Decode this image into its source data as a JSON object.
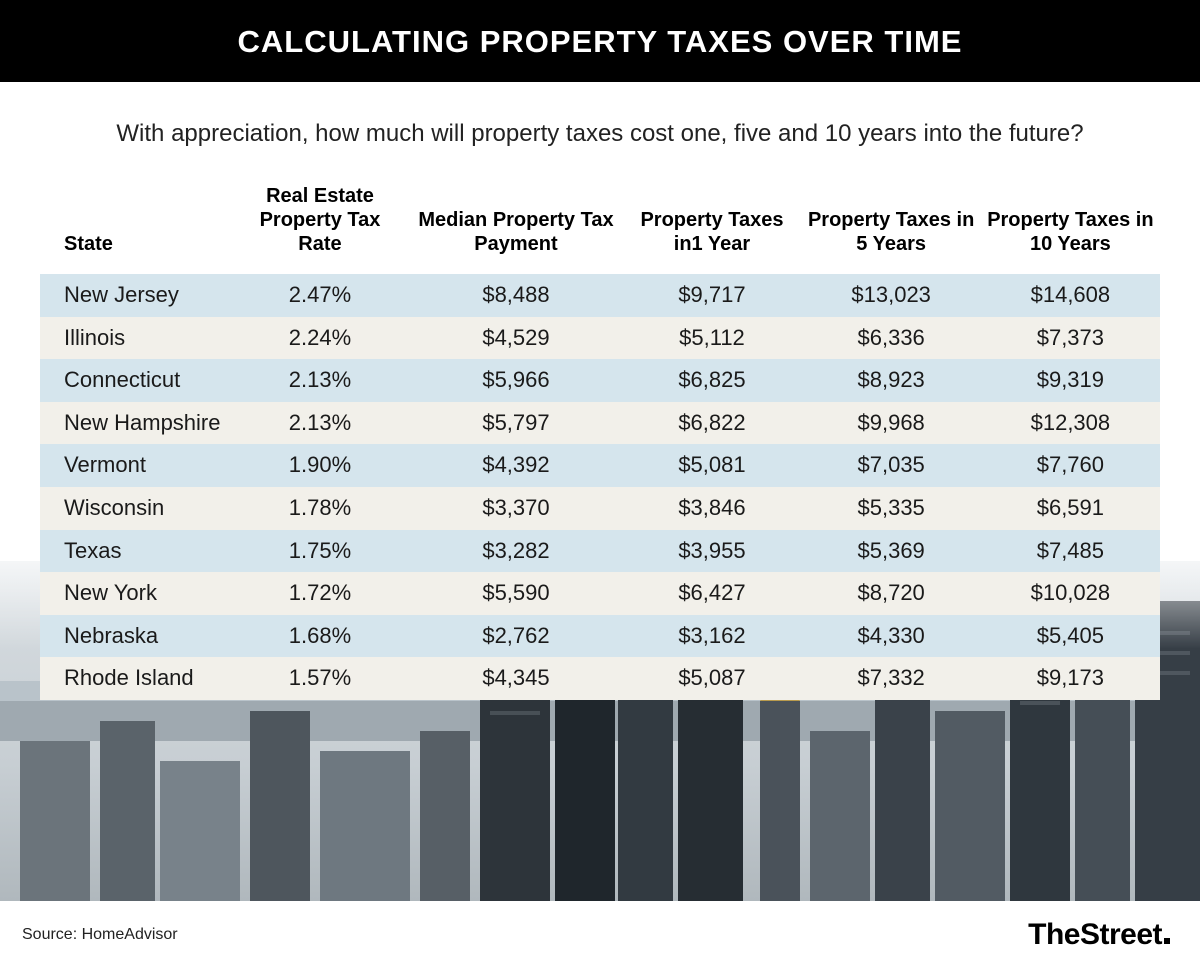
{
  "title": "CALCULATING PROPERTY TAXES OVER TIME",
  "subtitle": "With appreciation, how much will property taxes cost one, five and 10 years into the future?",
  "source_label": "Source: HomeAdvisor",
  "brand": "TheStreet",
  "table": {
    "type": "table",
    "row_colors": {
      "odd": "#d5e5ed",
      "even": "#f2f0ea"
    },
    "header_fontsize": 20,
    "cell_fontsize": 22,
    "text_color": "#1a1a1a",
    "columns": [
      {
        "key": "state",
        "label": "State",
        "align": "left",
        "width_pct": 17
      },
      {
        "key": "rate",
        "label": "Real Estate Property Tax Rate",
        "align": "center",
        "width_pct": 16
      },
      {
        "key": "median",
        "label": "Median Property Tax Payment",
        "align": "center",
        "width_pct": 19
      },
      {
        "key": "y1",
        "label": "Property Taxes in1 Year",
        "align": "center",
        "width_pct": 16
      },
      {
        "key": "y5",
        "label": "Property Taxes in 5 Years",
        "align": "center",
        "width_pct": 16
      },
      {
        "key": "y10",
        "label": "Property Taxes in 10 Years",
        "align": "center",
        "width_pct": 16
      }
    ],
    "rows": [
      {
        "state": "New Jersey",
        "rate": "2.47%",
        "median": "$8,488",
        "y1": "$9,717",
        "y5": "$13,023",
        "y10": "$14,608"
      },
      {
        "state": "Illinois",
        "rate": "2.24%",
        "median": "$4,529",
        "y1": "$5,112",
        "y5": "$6,336",
        "y10": "$7,373"
      },
      {
        "state": "Connecticut",
        "rate": "2.13%",
        "median": "$5,966",
        "y1": "$6,825",
        "y5": "$8,923",
        "y10": "$9,319"
      },
      {
        "state": "New Hampshire",
        "rate": "2.13%",
        "median": "$5,797",
        "y1": "$6,822",
        "y5": "$9,968",
        "y10": "$12,308"
      },
      {
        "state": "Vermont",
        "rate": "1.90%",
        "median": "$4,392",
        "y1": "$5,081",
        "y5": "$7,035",
        "y10": "$7,760"
      },
      {
        "state": "Wisconsin",
        "rate": "1.78%",
        "median": "$3,370",
        "y1": "$3,846",
        "y5": "$5,335",
        "y10": "$6,591"
      },
      {
        "state": "Texas",
        "rate": "1.75%",
        "median": "$3,282",
        "y1": "$3,955",
        "y5": "$5,369",
        "y10": "$7,485"
      },
      {
        "state": "New York",
        "rate": "1.72%",
        "median": "$5,590",
        "y1": "$6,427",
        "y5": "$8,720",
        "y10": "$10,028"
      },
      {
        "state": "Nebraska",
        "rate": "1.68%",
        "median": "$2,762",
        "y1": "$3,162",
        "y5": "$4,330",
        "y10": "$5,405"
      },
      {
        "state": "Rhode Island",
        "rate": "1.57%",
        "median": "$4,345",
        "y1": "$5,087",
        "y5": "$7,332",
        "y10": "$9,173"
      }
    ]
  },
  "styling": {
    "title_bg": "#000000",
    "title_color": "#ffffff",
    "title_fontsize": 31,
    "subtitle_fontsize": 24,
    "subtitle_color": "#222222",
    "page_bg": "#ffffff",
    "skyline_gradient": [
      "#d8dee2",
      "#c7ced3",
      "#b0b8bd"
    ],
    "skyline_building_colors": [
      "#3a4148",
      "#5a6168",
      "#7a8188",
      "#2b3238",
      "#9aa1a7"
    ]
  }
}
